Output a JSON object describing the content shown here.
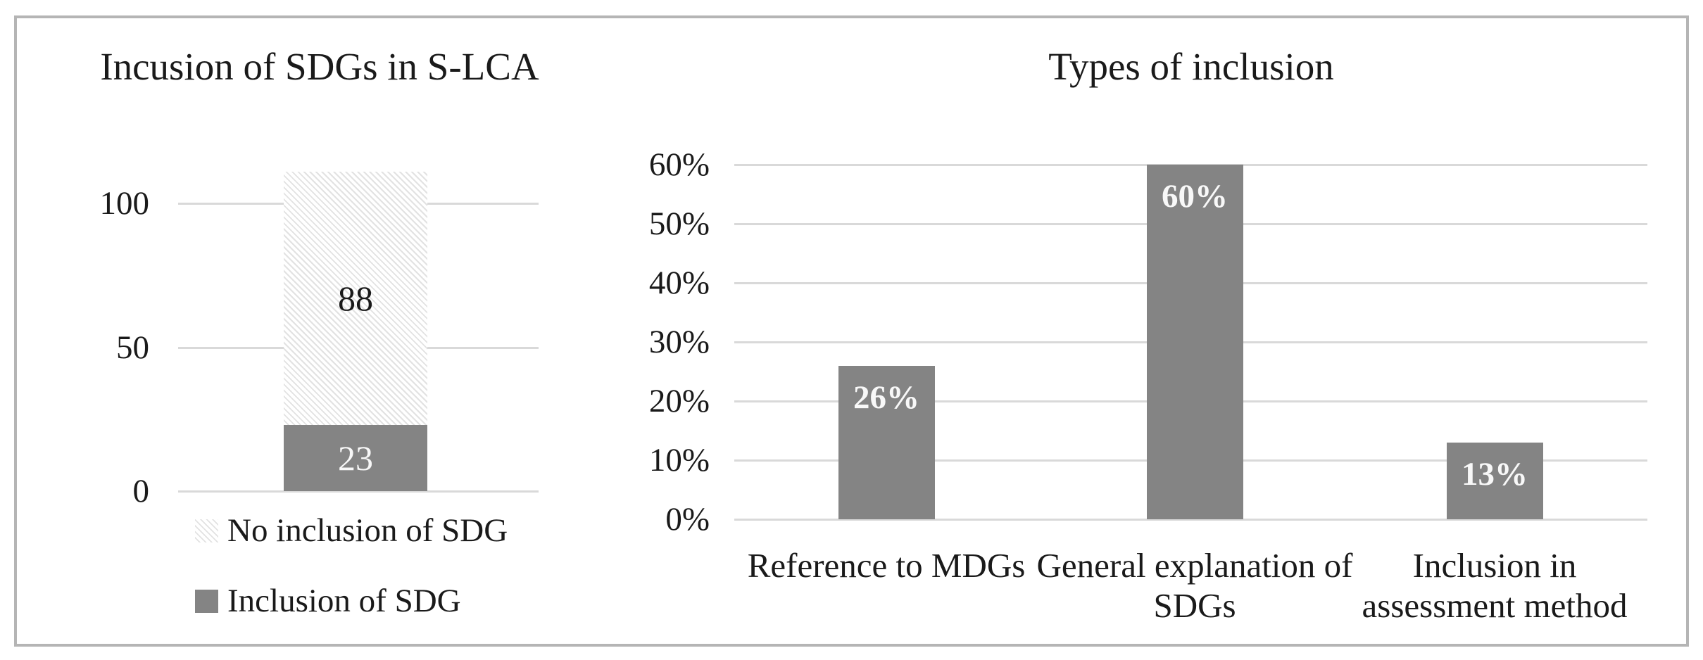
{
  "colors": {
    "bar_gray": "#848484",
    "gridline": "#d9d9d9",
    "hatch_line": "#e2e2e2",
    "frame_border": "#b5b5b5",
    "text": "#1a1a1a",
    "label_white": "#f8f8f8"
  },
  "chart_data": [
    {
      "type": "bar",
      "stacked": true,
      "title": "Incusion of SDGs in S-LCA",
      "categories": [
        ""
      ],
      "series": [
        {
          "name": "Inclusion of SDG",
          "values": [
            23
          ],
          "swatch": "solid-gray",
          "label_color": "white"
        },
        {
          "name": "No inclusion of SDG",
          "values": [
            88
          ],
          "swatch": "diagonal-hatch",
          "label_color": "black"
        }
      ],
      "ylim": [
        0,
        100
      ],
      "yticks": [
        100,
        50,
        0
      ],
      "ytick_labels": [
        "100",
        "50",
        "0"
      ],
      "grid": true,
      "legend_position": "bottom-left",
      "legend": [
        {
          "label": "No inclusion of SDG",
          "swatch": "diagonal-hatch"
        },
        {
          "label": "Inclusion of SDG",
          "swatch": "solid-gray"
        }
      ]
    },
    {
      "type": "bar",
      "stacked": false,
      "title": "Types of inclusion",
      "categories": [
        "Reference to MDGs",
        "General explanation of\nSDGs",
        "Inclusion in\nassessment method"
      ],
      "values": [
        26,
        60,
        13
      ],
      "data_labels": [
        "26%",
        "60%",
        "13%"
      ],
      "ylim": [
        0,
        60
      ],
      "yticks": [
        0,
        10,
        20,
        30,
        40,
        50,
        60
      ],
      "ytick_labels": [
        "0%",
        "10%",
        "20%",
        "30%",
        "40%",
        "50%",
        "60%"
      ],
      "grid": true,
      "legend_position": "none"
    }
  ]
}
